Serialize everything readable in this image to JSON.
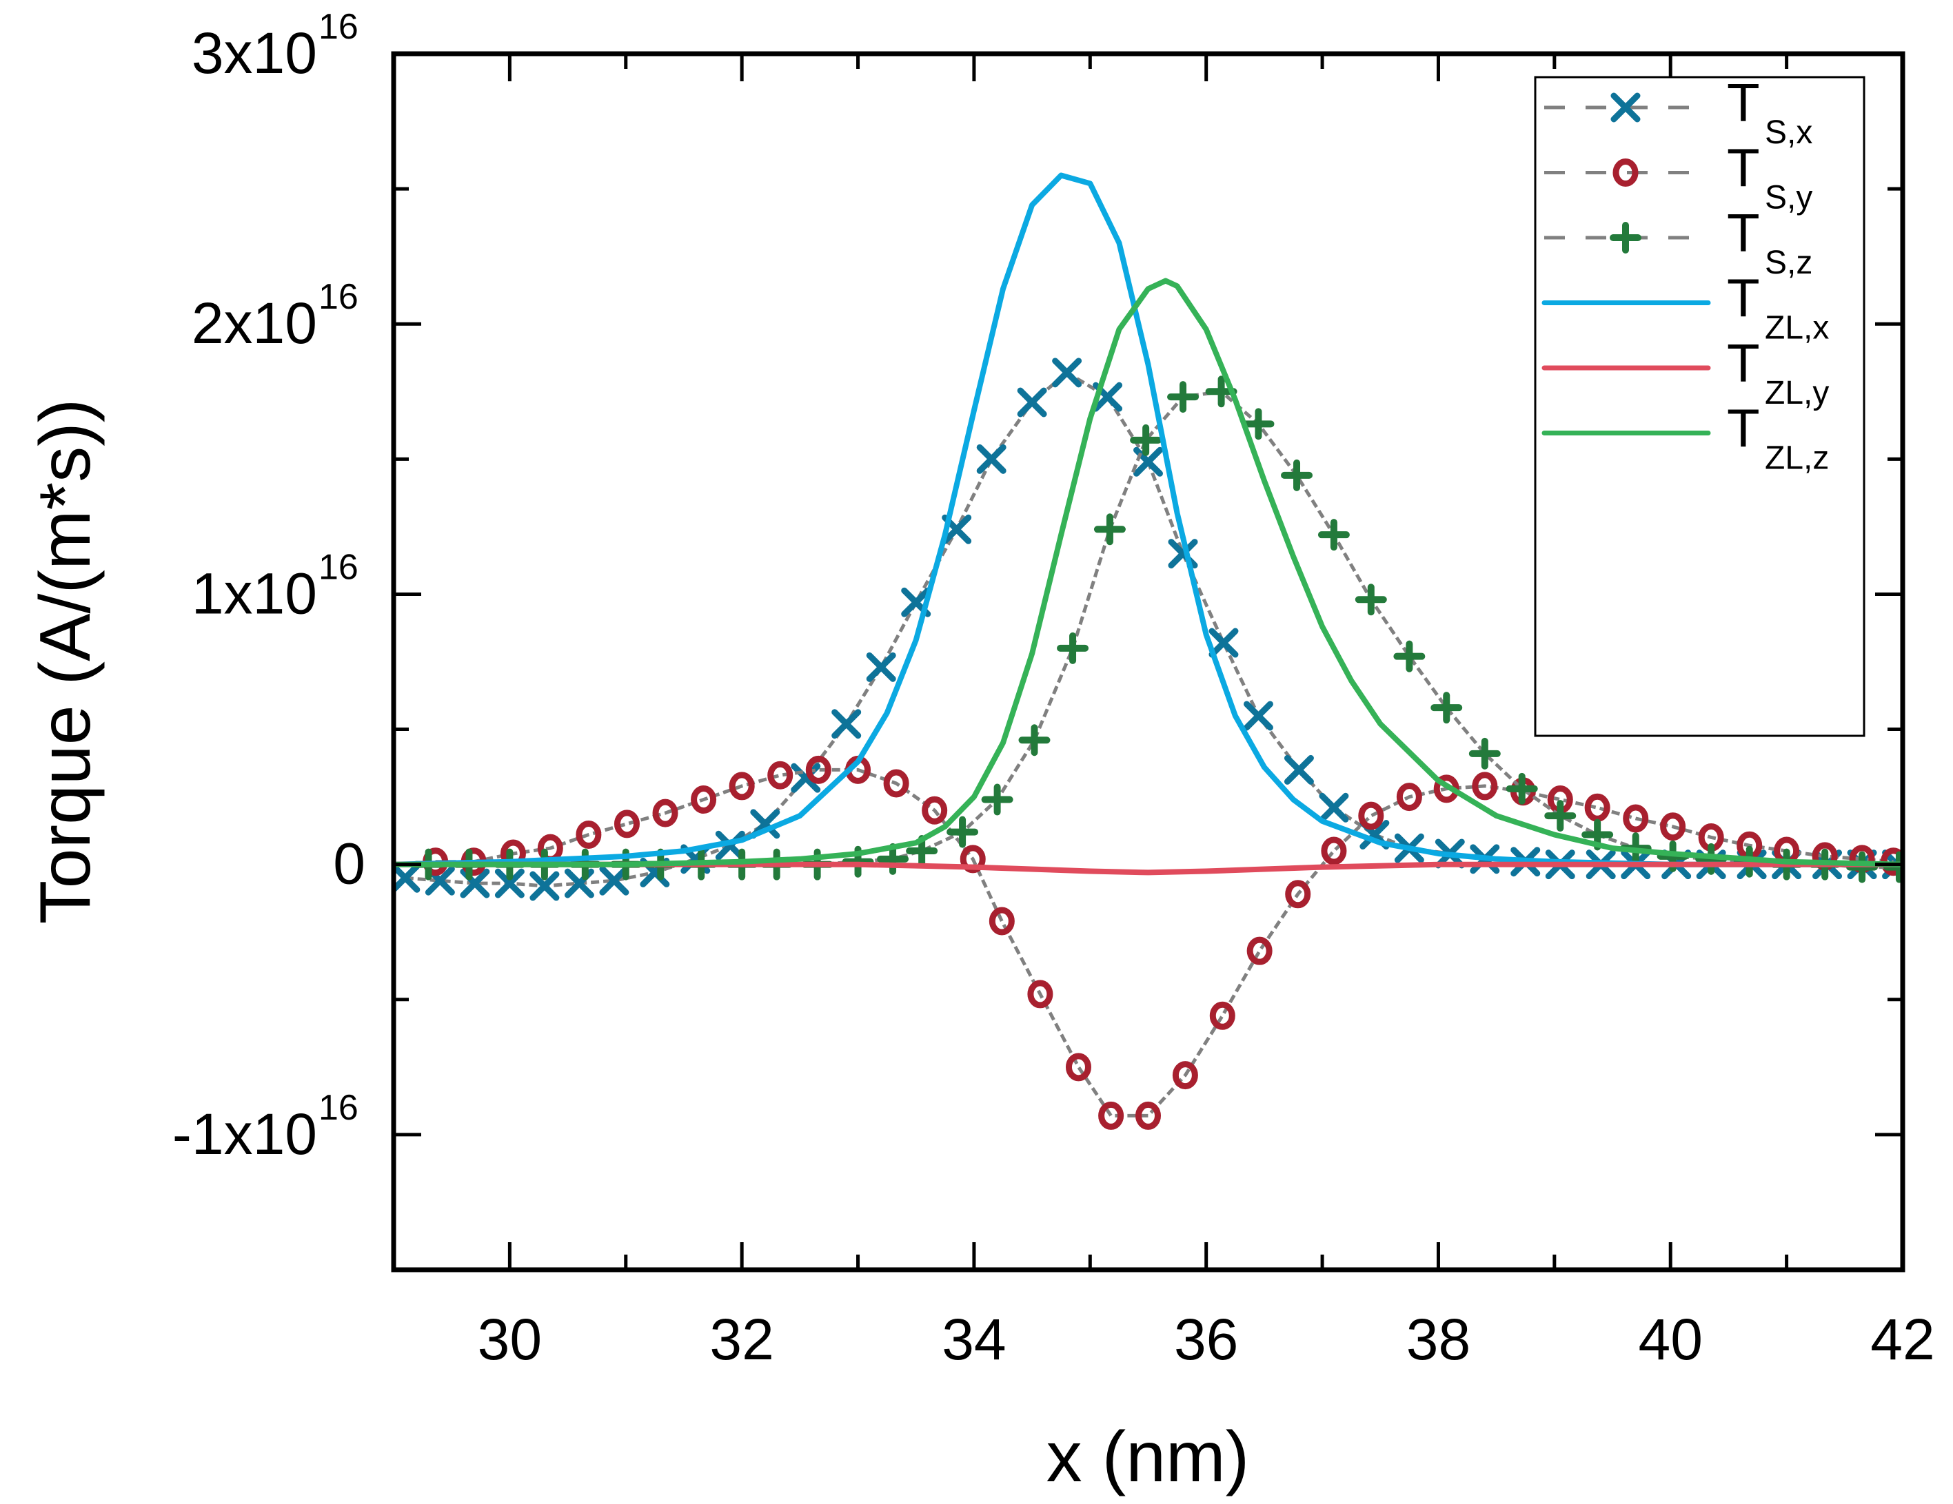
{
  "chart_data": {
    "type": "line",
    "title": "",
    "xlabel": "x (nm)",
    "ylabel": "Torque (A/(m*s))",
    "xlim": [
      29,
      42
    ],
    "ylim": [
      -1.5e+16,
      3e+16
    ],
    "grid": false,
    "legend_position": "top-right",
    "x_ticks": [
      30,
      32,
      34,
      36,
      38,
      40,
      42
    ],
    "x_tick_labels": [
      "30",
      "32",
      "34",
      "36",
      "38",
      "40",
      "42"
    ],
    "y_ticks": [
      -1e+16,
      0,
      1e+16,
      2e+16,
      3e+16
    ],
    "y_tick_labels": [
      {
        "mantissa": "-1x10",
        "exp": "16"
      },
      {
        "mantissa": "0",
        "exp": ""
      },
      {
        "mantissa": "1x10",
        "exp": "16"
      },
      {
        "mantissa": "2x10",
        "exp": "16"
      },
      {
        "mantissa": "3x10",
        "exp": "16"
      }
    ],
    "series": [
      {
        "name": "T_S,x",
        "label_main": "T",
        "label_sub": "S,x",
        "style": "dashed-marker",
        "marker": "x",
        "color": "#0e7399",
        "line_color": "#808080",
        "x": [
          29.1,
          29.4,
          29.7,
          30.0,
          30.3,
          30.6,
          30.9,
          31.25,
          31.6,
          31.9,
          32.2,
          32.55,
          32.9,
          33.2,
          33.5,
          33.85,
          34.15,
          34.5,
          34.8,
          35.15,
          35.5,
          35.8,
          36.15,
          36.45,
          36.8,
          37.1,
          37.45,
          37.75,
          38.1,
          38.4,
          38.75,
          39.05,
          39.4,
          39.7,
          40.05,
          40.35,
          40.7,
          41.0,
          41.35,
          41.65,
          41.95
        ],
        "values": [
          -500000000000000.0,
          -600000000000000.0,
          -700000000000000.0,
          -700000000000000.0,
          -800000000000000.0,
          -700000000000000.0,
          -600000000000000.0,
          -300000000000000.0,
          200000000000000.0,
          700000000000000.0,
          1500000000000000.0,
          3200000000000000.0,
          5200000000000000.0,
          7300000000000000.0,
          9700000000000000.0,
          1.24e+16,
          1.5e+16,
          1.71e+16,
          1.82e+16,
          1.73e+16,
          1.49e+16,
          1.15e+16,
          8200000000000000.0,
          5500000000000000.0,
          3500000000000000.0,
          2100000000000000.0,
          1100000000000000.0,
          600000000000000.0,
          400000000000000.0,
          200000000000000.0,
          100000000000000.0,
          0.0,
          0.0,
          0.0,
          0.0,
          0.0,
          0.0,
          0.0,
          0.0,
          0.0,
          0.0
        ]
      },
      {
        "name": "T_S,y",
        "label_main": "T",
        "label_sub": "S,y",
        "style": "dashed-marker",
        "marker": "circle",
        "color": "#a8202f",
        "line_color": "#808080",
        "x": [
          29.36,
          29.69,
          30.03,
          30.35,
          30.68,
          31.01,
          31.34,
          31.67,
          32.0,
          32.33,
          32.66,
          33.0,
          33.33,
          33.66,
          33.99,
          34.24,
          34.57,
          34.9,
          35.18,
          35.5,
          35.82,
          36.14,
          36.46,
          36.79,
          37.1,
          37.42,
          37.75,
          38.07,
          38.4,
          38.73,
          39.05,
          39.37,
          39.7,
          40.02,
          40.35,
          40.68,
          41.0,
          41.33,
          41.65,
          41.92
        ],
        "values": [
          100000000000000.0,
          100000000000000.0,
          400000000000000.0,
          600000000000000.0,
          1100000000000000.0,
          1500000000000000.0,
          1900000000000000.0,
          2400000000000000.0,
          2900000000000000.0,
          3300000000000000.0,
          3500000000000000.0,
          3500000000000000.0,
          3000000000000000.0,
          2000000000000000.0,
          200000000000000.0,
          -2100000000000000.0,
          -4800000000000000.0,
          -7500000000000000.0,
          -9300000000000000.0,
          -9300000000000000.0,
          -7800000000000000.0,
          -5600000000000000.0,
          -3200000000000000.0,
          -1100000000000000.0,
          500000000000000.0,
          1800000000000000.0,
          2500000000000000.0,
          2800000000000000.0,
          2900000000000000.0,
          2700000000000000.0,
          2400000000000000.0,
          2100000000000000.0,
          1700000000000000.0,
          1400000000000000.0,
          1000000000000000.0,
          700000000000000.0,
          500000000000000.0,
          300000000000000.0,
          200000000000000.0,
          100000000000000.0
        ]
      },
      {
        "name": "T_S,z",
        "label_main": "T",
        "label_sub": "S,z",
        "style": "dashed-marker",
        "marker": "plus",
        "color": "#237a3b",
        "line_color": "#808080",
        "x": [
          29.3,
          29.65,
          30.0,
          30.3,
          30.65,
          31.0,
          31.3,
          31.65,
          32.0,
          32.3,
          32.65,
          33.0,
          33.3,
          33.55,
          33.9,
          34.2,
          34.52,
          34.85,
          35.17,
          35.48,
          35.8,
          36.13,
          36.45,
          36.78,
          37.1,
          37.42,
          37.75,
          38.07,
          38.4,
          38.72,
          39.05,
          39.37,
          39.7,
          40.02,
          40.35,
          40.68,
          41.0,
          41.33,
          41.65,
          41.97
        ],
        "values": [
          0.0,
          0.0,
          0.0,
          0.0,
          0.0,
          0.0,
          0.0,
          0.0,
          0.0,
          0.0,
          0.0,
          100000000000000.0,
          200000000000000.0,
          500000000000000.0,
          1200000000000000.0,
          2400000000000000.0,
          4600000000000000.0,
          8000000000000000.0,
          1.24e+16,
          1.57e+16,
          1.73e+16,
          1.75e+16,
          1.63e+16,
          1.44e+16,
          1.22e+16,
          9800000000000000.0,
          7700000000000000.0,
          5800000000000000.0,
          4100000000000000.0,
          2800000000000000.0,
          1800000000000000.0,
          1100000000000000.0,
          600000000000000.0,
          300000000000000.0,
          200000000000000.0,
          100000000000000.0,
          0.0,
          0.0,
          -100000000000000.0,
          -100000000000000.0
        ]
      },
      {
        "name": "T_ZL,x",
        "label_main": "T",
        "label_sub": "ZL,x",
        "style": "solid",
        "color": "#0ba9e2",
        "x": [
          29,
          30,
          31,
          31.5,
          32,
          32.5,
          33,
          33.25,
          33.5,
          33.75,
          34,
          34.25,
          34.5,
          34.75,
          35,
          35.25,
          35.5,
          35.75,
          36,
          36.25,
          36.5,
          36.75,
          37,
          37.5,
          38,
          38.5,
          39,
          40,
          41,
          42
        ],
        "values": [
          0.0,
          100000000000000.0,
          300000000000000.0,
          500000000000000.0,
          900000000000000.0,
          1800000000000000.0,
          3800000000000000.0,
          5600000000000000.0,
          8300000000000000.0,
          1.22e+16,
          1.68e+16,
          2.13e+16,
          2.44e+16,
          2.55e+16,
          2.52e+16,
          2.3e+16,
          1.85e+16,
          1.3e+16,
          8500000000000000.0,
          5500000000000000.0,
          3600000000000000.0,
          2400000000000000.0,
          1600000000000000.0,
          800000000000000.0,
          400000000000000.0,
          200000000000000.0,
          100000000000000.0,
          0.0,
          0.0,
          0.0
        ]
      },
      {
        "name": "T_ZL,y",
        "label_main": "T",
        "label_sub": "ZL,y",
        "style": "solid",
        "color": "#e04b5c",
        "x": [
          29,
          31,
          33,
          34,
          35,
          35.5,
          36,
          37,
          38,
          40,
          42
        ],
        "values": [
          0.0,
          0.0,
          0.0,
          -100000000000000.0,
          -250000000000000.0,
          -300000000000000.0,
          -250000000000000.0,
          -100000000000000.0,
          0.0,
          0.0,
          0.0
        ]
      },
      {
        "name": "T_ZL,z",
        "label_main": "T",
        "label_sub": "ZL,z",
        "style": "solid",
        "color": "#35b257",
        "x": [
          29,
          30,
          31,
          32,
          32.5,
          33,
          33.5,
          33.75,
          34,
          34.25,
          34.5,
          34.75,
          35,
          35.25,
          35.5,
          35.65,
          35.75,
          36,
          36.25,
          36.5,
          36.75,
          37,
          37.25,
          37.5,
          38,
          38.5,
          39,
          39.5,
          40,
          41,
          42
        ],
        "values": [
          0.0,
          0.0,
          0.0,
          100000000000000.0,
          200000000000000.0,
          400000000000000.0,
          800000000000000.0,
          1400000000000000.0,
          2500000000000000.0,
          4500000000000000.0,
          7800000000000000.0,
          1.22e+16,
          1.65e+16,
          1.98e+16,
          2.13e+16,
          2.16e+16,
          2.14e+16,
          1.98e+16,
          1.72e+16,
          1.42e+16,
          1.14e+16,
          8800000000000000.0,
          6800000000000000.0,
          5200000000000000.0,
          3100000000000000.0,
          1800000000000000.0,
          1100000000000000.0,
          600000000000000.0,
          400000000000000.0,
          100000000000000.0,
          0.0
        ]
      }
    ]
  }
}
